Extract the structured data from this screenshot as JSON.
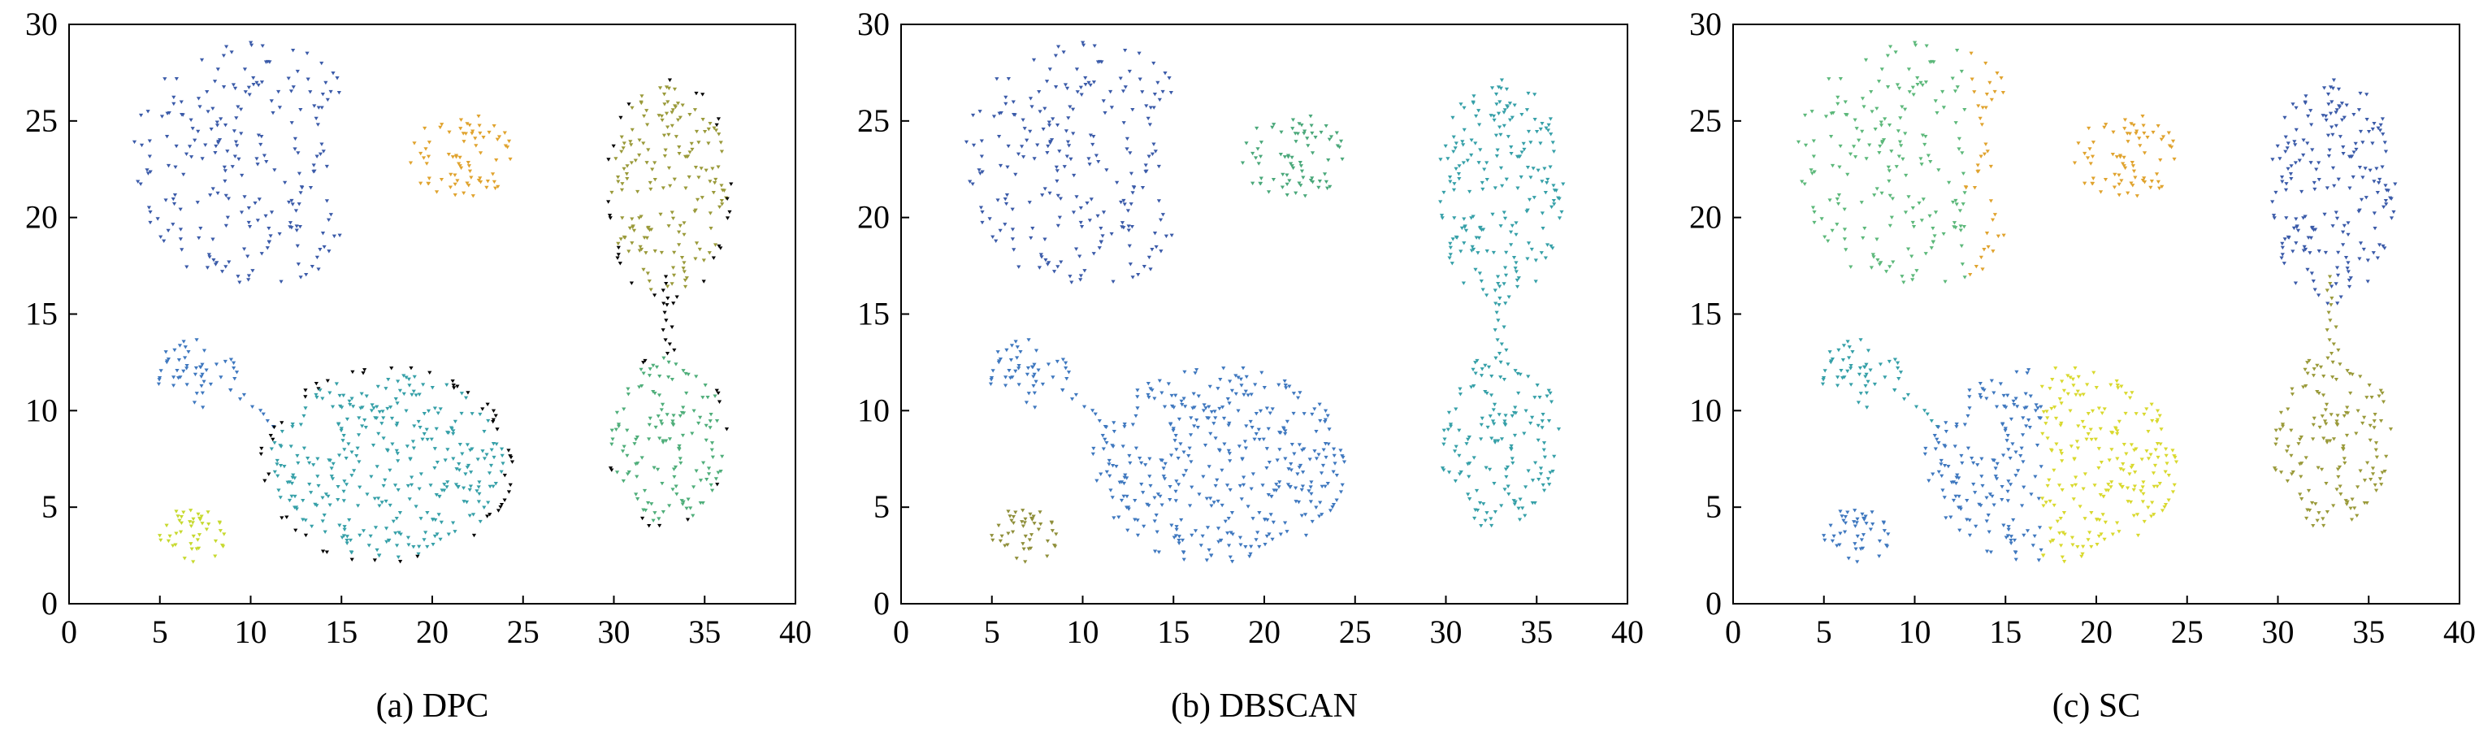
{
  "figure": {
    "panels": [
      {
        "caption": "(a) DPC"
      },
      {
        "caption": "(b) DBSCAN"
      },
      {
        "caption": "(c) SC"
      }
    ]
  },
  "chart_data": [
    {
      "type": "scatter",
      "caption": "(a) DPC",
      "xlim": [
        0,
        40
      ],
      "ylim": [
        0,
        30
      ],
      "xticks": [
        "0",
        "5",
        "10",
        "15",
        "20",
        "25",
        "30",
        "35",
        "40"
      ],
      "yticks": [
        "0",
        "5",
        "10",
        "15",
        "20",
        "25",
        "30"
      ],
      "grid": false,
      "clusters": [
        {
          "shape": "crescent",
          "center": [
            9.5,
            22.8
          ],
          "color": "#3b5ba9",
          "count": 230
        },
        {
          "shape": "ellipse",
          "center": [
            21.6,
            23.2
          ],
          "rx": 3.0,
          "ry": 2.2,
          "color": "#e0a32e",
          "count": 75
        },
        {
          "shape": "ellipse",
          "center": [
            33.0,
            21.5
          ],
          "rx": 3.5,
          "ry": 6.0,
          "color": "#9a9a3a",
          "count": 200
        },
        {
          "shape": "bridge",
          "from": [
            33.0,
            17.0
          ],
          "to": [
            33.0,
            13.0
          ],
          "color": "#000000",
          "count": 12
        },
        {
          "shape": "ellipse",
          "center": [
            33.0,
            8.5
          ],
          "rx": 3.4,
          "ry": 4.7,
          "color": "#4fae7a",
          "count": 150
        },
        {
          "shape": "ellipse",
          "center": [
            7.0,
            11.9
          ],
          "rx": 2.3,
          "ry": 1.8,
          "color": "#3f78bf",
          "count": 50
        },
        {
          "shape": "bridge",
          "from": [
            9.0,
            11.0
          ],
          "to": [
            11.5,
            9.2
          ],
          "color": "#3f78bf",
          "count": 8
        },
        {
          "shape": "ellipse",
          "center": [
            17.5,
            7.2
          ],
          "rx": 7.0,
          "ry": 5.2,
          "color": "#36a0a8",
          "count": 380
        },
        {
          "shape": "ellipse",
          "center": [
            6.7,
            3.5
          ],
          "rx": 1.9,
          "ry": 1.5,
          "color": "#c7d92f",
          "count": 45
        }
      ],
      "border_points_color": "#000000"
    },
    {
      "type": "scatter",
      "caption": "(b) DBSCAN",
      "xlim": [
        0,
        40
      ],
      "ylim": [
        0,
        30
      ],
      "xticks": [
        "0",
        "5",
        "10",
        "15",
        "20",
        "25",
        "30",
        "35",
        "40"
      ],
      "yticks": [
        "0",
        "5",
        "10",
        "15",
        "20",
        "25",
        "30"
      ],
      "grid": false,
      "clusters": [
        {
          "shape": "crescent",
          "center": [
            9.5,
            22.8
          ],
          "color": "#3b5ba9",
          "count": 230
        },
        {
          "shape": "ellipse",
          "center": [
            21.6,
            23.2
          ],
          "rx": 3.0,
          "ry": 2.2,
          "color": "#4aa87a",
          "count": 75
        },
        {
          "shape": "ellipse",
          "center": [
            33.0,
            21.5
          ],
          "rx": 3.5,
          "ry": 6.0,
          "color": "#36a0a8",
          "count": 200
        },
        {
          "shape": "bridge",
          "from": [
            33.0,
            17.0
          ],
          "to": [
            33.0,
            13.0
          ],
          "color": "#36a0a8",
          "count": 12
        },
        {
          "shape": "ellipse",
          "center": [
            33.0,
            8.5
          ],
          "rx": 3.4,
          "ry": 4.7,
          "color": "#36a0a8",
          "count": 150
        },
        {
          "shape": "ellipse",
          "center": [
            7.0,
            11.9
          ],
          "rx": 2.3,
          "ry": 1.8,
          "color": "#3f78bf",
          "count": 50
        },
        {
          "shape": "bridge",
          "from": [
            9.0,
            11.0
          ],
          "to": [
            11.5,
            9.2
          ],
          "color": "#3f78bf",
          "count": 8
        },
        {
          "shape": "ellipse",
          "center": [
            17.5,
            7.2
          ],
          "rx": 7.0,
          "ry": 5.2,
          "color": "#3f78bf",
          "count": 380
        },
        {
          "shape": "ellipse",
          "center": [
            6.7,
            3.5
          ],
          "rx": 1.9,
          "ry": 1.5,
          "color": "#8f8f3a",
          "count": 45
        }
      ]
    },
    {
      "type": "scatter",
      "caption": "(c) SC",
      "xlim": [
        0,
        40
      ],
      "ylim": [
        0,
        30
      ],
      "xticks": [
        "0",
        "5",
        "10",
        "15",
        "20",
        "25",
        "30",
        "35",
        "40"
      ],
      "yticks": [
        "0",
        "5",
        "10",
        "15",
        "20",
        "25",
        "30"
      ],
      "grid": false,
      "clusters": [
        {
          "shape": "crescent",
          "center": [
            9.5,
            22.8
          ],
          "color": "#5cb87a",
          "count": 230,
          "tip_color": "#e0a32e"
        },
        {
          "shape": "ellipse",
          "center": [
            21.6,
            23.2
          ],
          "rx": 3.0,
          "ry": 2.2,
          "color": "#e0a32e",
          "count": 75
        },
        {
          "shape": "ellipse",
          "center": [
            33.0,
            21.5
          ],
          "rx": 3.5,
          "ry": 6.0,
          "color": "#3b5ba9",
          "count": 200
        },
        {
          "shape": "bridge",
          "from": [
            33.0,
            17.0
          ],
          "to": [
            33.0,
            13.0
          ],
          "color": "#9a9a3a",
          "count": 12
        },
        {
          "shape": "ellipse",
          "center": [
            33.0,
            8.5
          ],
          "rx": 3.4,
          "ry": 4.7,
          "color": "#9a9a3a",
          "count": 150
        },
        {
          "shape": "ellipse",
          "center": [
            7.0,
            11.9
          ],
          "rx": 2.3,
          "ry": 1.8,
          "color": "#36a0a8",
          "count": 50
        },
        {
          "shape": "bridge",
          "from": [
            9.0,
            11.0
          ],
          "to": [
            11.5,
            9.2
          ],
          "color": "#36a0a8",
          "count": 8
        },
        {
          "shape": "ellipse",
          "center": [
            17.5,
            7.2
          ],
          "rx": 7.0,
          "ry": 5.2,
          "color": "#3f78bf",
          "count": 380,
          "split_x": 17.0,
          "split_color": "#d9d92f"
        },
        {
          "shape": "ellipse",
          "center": [
            6.7,
            3.5
          ],
          "rx": 1.9,
          "ry": 1.5,
          "color": "#3f78bf",
          "count": 45
        }
      ]
    }
  ]
}
